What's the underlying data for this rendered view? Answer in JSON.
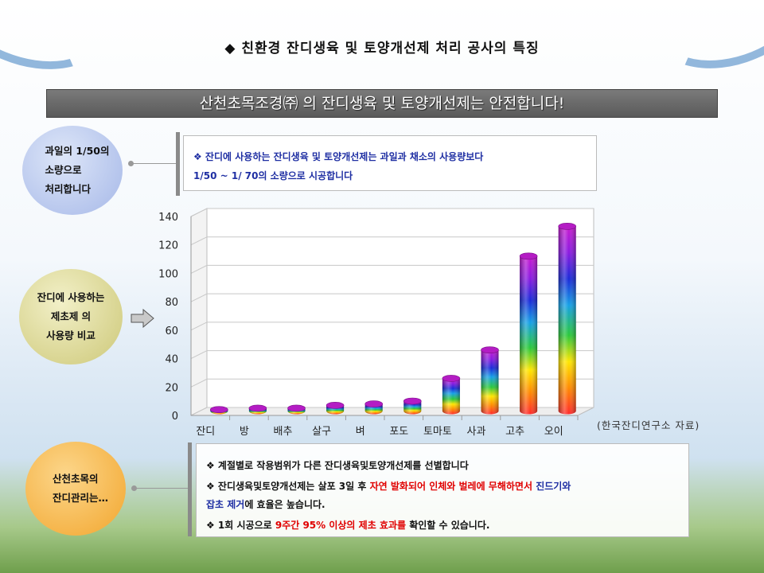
{
  "header": {
    "title": "◆ 친환경 잔디생육 및 토양개선제 처리 공사의 특징",
    "banner": "산천초목조경㈜ 의 잔디생육 및 토양개선제는 안전합니다!"
  },
  "circles": {
    "c1": [
      "과일의 1/50의",
      "소량으로",
      "처리합니다"
    ],
    "c2": [
      "잔디에 사용하는",
      "제초제 의",
      "사용량 비교"
    ],
    "c3": [
      "산천초목의",
      "잔디관리는…"
    ]
  },
  "note1": {
    "line1": "❖ 잔디에 사용하는 잔디생육 및 토양개선제는 과일과  채소의 사용량보다",
    "line2": "1/50 ~ 1/ 70의 소량으로 시공합니다"
  },
  "note2": {
    "p1": "❖ 계절별로 작용범위가 다른 잔디생육및토양개선제를 선별합니다",
    "p2a": "❖ 잔디생육및토양개선제는  살포 3일 후 ",
    "p2b": " 자연 발화되어  인체와  벌레에 무해하면서 ",
    "p2c": " 진드기와",
    "p2d": "잡초 제거",
    "p2e": "에 효율은 높습니다.",
    "p3a": "❖ 1회 시공으로 ",
    "p3b": "9주간 95% 이상의 제초 효과를",
    "p3c": " 확인할 수 있습니다."
  },
  "source": "(한국잔디연구소 자료)",
  "colors": {
    "banner": "#5f5f5f",
    "note_blue": "#1f2fa3",
    "highlight_red": "#e00000",
    "circle1": "#a6b8e8",
    "circle2": "#cdc878",
    "circle3": "#f2a62e"
  },
  "chart_data": {
    "type": "bar",
    "style": "3d cylinder with rainbow gradient",
    "categories": [
      "잔디",
      "방",
      "배추",
      "살구",
      "벼",
      "포도",
      "토마토",
      "사과",
      "고추",
      "오이"
    ],
    "values": [
      1,
      2,
      2,
      4,
      5,
      7,
      23,
      43,
      109,
      130
    ],
    "yticks": [
      0,
      20,
      40,
      60,
      80,
      100,
      120,
      140
    ],
    "ylim": [
      0,
      140
    ],
    "grid": true,
    "title": "",
    "xlabel": "",
    "ylabel": ""
  }
}
